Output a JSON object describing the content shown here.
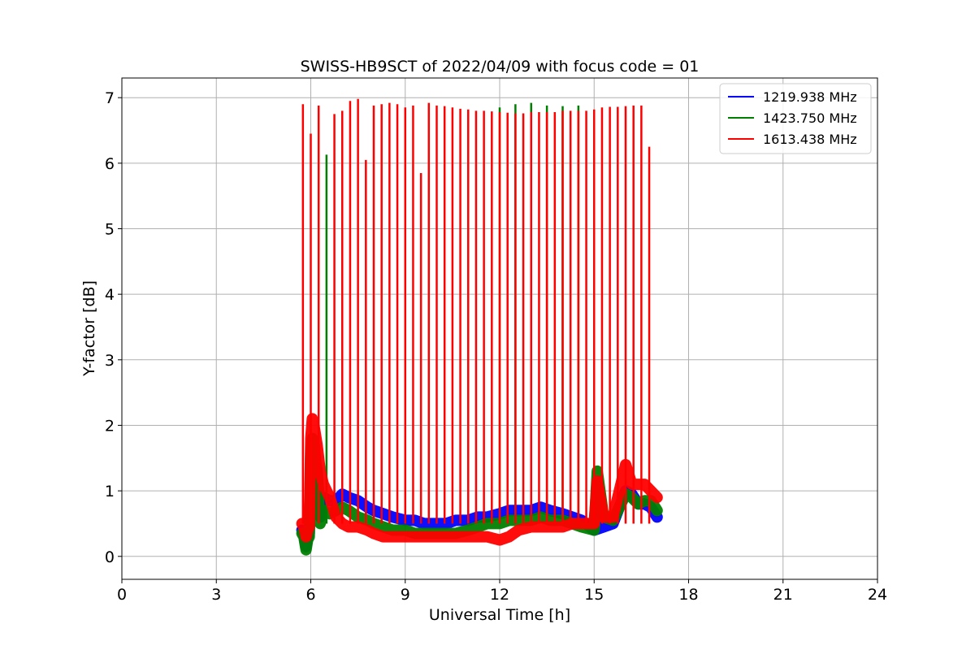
{
  "chart_data": {
    "type": "line",
    "title": "SWISS-HB9SCT of 2022/04/09 with focus code = 01",
    "xlabel": "Universal Time [h]",
    "ylabel": "Y-factor [dB]",
    "xlim": [
      0,
      24
    ],
    "ylim": [
      -0.35,
      7.3
    ],
    "xticks": [
      0,
      3,
      6,
      9,
      12,
      15,
      18,
      21,
      24
    ],
    "yticks": [
      0,
      1,
      2,
      3,
      4,
      5,
      6,
      7
    ],
    "grid": true,
    "legend_position": "top-right",
    "series": [
      {
        "name": "1219.938 MHz",
        "color": "#0000ff",
        "x": [
          5.72,
          5.78,
          5.85,
          5.9,
          5.95,
          6.0,
          6.05,
          6.1,
          6.2,
          6.3,
          6.4,
          6.6,
          6.8,
          7.0,
          7.2,
          7.5,
          7.8,
          8.0,
          8.3,
          8.6,
          9.0,
          9.3,
          9.6,
          10.0,
          10.3,
          10.6,
          11.0,
          11.3,
          11.6,
          12.0,
          12.3,
          12.6,
          13.0,
          13.3,
          13.6,
          14.0,
          14.3,
          14.6,
          15.0,
          15.3,
          15.6,
          16.0,
          16.2,
          16.4,
          16.6,
          16.8,
          17.0
        ],
        "y": [
          0.4,
          0.35,
          0.15,
          0.3,
          0.35,
          1.4,
          1.65,
          1.6,
          1.3,
          0.6,
          0.9,
          0.85,
          0.85,
          0.95,
          0.9,
          0.85,
          0.75,
          0.7,
          0.65,
          0.6,
          0.55,
          0.55,
          0.5,
          0.5,
          0.5,
          0.55,
          0.55,
          0.6,
          0.6,
          0.65,
          0.7,
          0.7,
          0.7,
          0.75,
          0.7,
          0.65,
          0.6,
          0.55,
          0.4,
          0.45,
          0.5,
          1.0,
          0.95,
          0.8,
          0.8,
          0.75,
          0.6
        ],
        "spikes_x": [],
        "spikes_y": []
      },
      {
        "name": "1423.750 MHz",
        "color": "#008000",
        "x": [
          5.72,
          5.78,
          5.85,
          5.9,
          5.95,
          6.0,
          6.05,
          6.1,
          6.2,
          6.3,
          6.4,
          6.6,
          6.8,
          7.0,
          7.2,
          7.5,
          7.8,
          8.0,
          8.3,
          8.6,
          9.0,
          9.3,
          9.6,
          10.0,
          10.3,
          10.6,
          11.0,
          11.3,
          11.6,
          12.0,
          12.3,
          12.6,
          13.0,
          13.3,
          13.6,
          14.0,
          14.3,
          14.6,
          15.0,
          15.1,
          15.3,
          15.6,
          16.0,
          16.2,
          16.4,
          16.6,
          16.8,
          17.0
        ],
        "y": [
          0.35,
          0.3,
          0.1,
          0.25,
          0.3,
          1.5,
          1.8,
          1.75,
          1.2,
          0.5,
          0.7,
          0.65,
          0.7,
          0.75,
          0.7,
          0.6,
          0.55,
          0.5,
          0.45,
          0.4,
          0.4,
          0.35,
          0.35,
          0.35,
          0.35,
          0.35,
          0.4,
          0.45,
          0.5,
          0.5,
          0.55,
          0.55,
          0.55,
          0.6,
          0.55,
          0.55,
          0.5,
          0.45,
          0.4,
          1.3,
          0.6,
          0.55,
          0.95,
          0.9,
          0.8,
          0.85,
          0.85,
          0.7
        ],
        "spikes_x": [
          6.5,
          12.0,
          12.5,
          13.0,
          13.5,
          14.0,
          14.5
        ],
        "spikes_y": [
          6.13,
          6.85,
          6.9,
          6.92,
          6.88,
          6.87,
          6.88
        ]
      },
      {
        "name": "1613.438 MHz",
        "color": "#ff0000",
        "x": [
          5.72,
          5.78,
          5.85,
          5.9,
          5.95,
          6.0,
          6.05,
          6.1,
          6.2,
          6.3,
          6.4,
          6.6,
          6.8,
          7.0,
          7.2,
          7.5,
          7.8,
          8.0,
          8.3,
          8.6,
          9.0,
          9.3,
          9.6,
          10.0,
          10.3,
          10.6,
          11.0,
          11.3,
          11.6,
          12.0,
          12.3,
          12.6,
          13.0,
          13.3,
          13.6,
          14.0,
          14.3,
          14.6,
          15.0,
          15.1,
          15.3,
          15.6,
          16.0,
          16.2,
          16.4,
          16.6,
          16.8,
          17.0
        ],
        "y": [
          0.5,
          0.45,
          0.3,
          0.4,
          0.45,
          1.8,
          2.1,
          2.0,
          1.7,
          1.3,
          1.1,
          0.9,
          0.6,
          0.5,
          0.45,
          0.45,
          0.4,
          0.35,
          0.3,
          0.3,
          0.3,
          0.3,
          0.3,
          0.3,
          0.3,
          0.3,
          0.3,
          0.3,
          0.3,
          0.25,
          0.3,
          0.4,
          0.45,
          0.45,
          0.45,
          0.45,
          0.5,
          0.5,
          0.5,
          1.15,
          0.6,
          0.6,
          1.4,
          1.1,
          1.1,
          1.1,
          1.0,
          0.9
        ],
        "spikes_x": [
          5.75,
          6.0,
          6.25,
          6.75,
          7.0,
          7.25,
          7.5,
          7.75,
          8.0,
          8.25,
          8.5,
          8.75,
          9.0,
          9.25,
          9.5,
          9.75,
          10.0,
          10.25,
          10.5,
          10.75,
          11.0,
          11.25,
          11.5,
          11.75,
          12.0,
          12.25,
          12.5,
          12.75,
          13.0,
          13.25,
          13.5,
          13.75,
          14.0,
          14.25,
          14.5,
          14.75,
          15.0,
          15.25,
          15.5,
          15.75,
          16.0,
          16.25,
          16.5,
          16.75
        ],
        "spikes_y": [
          6.9,
          6.45,
          6.88,
          6.75,
          6.8,
          6.95,
          6.98,
          6.05,
          6.88,
          6.9,
          6.92,
          6.9,
          6.85,
          6.88,
          5.85,
          6.92,
          6.88,
          6.87,
          6.85,
          6.83,
          6.82,
          6.8,
          6.8,
          6.79,
          6.78,
          6.77,
          6.76,
          6.76,
          6.78,
          6.78,
          6.78,
          6.78,
          6.8,
          6.8,
          6.8,
          6.8,
          6.82,
          6.85,
          6.86,
          6.86,
          6.87,
          6.88,
          6.88,
          6.25
        ]
      }
    ]
  }
}
